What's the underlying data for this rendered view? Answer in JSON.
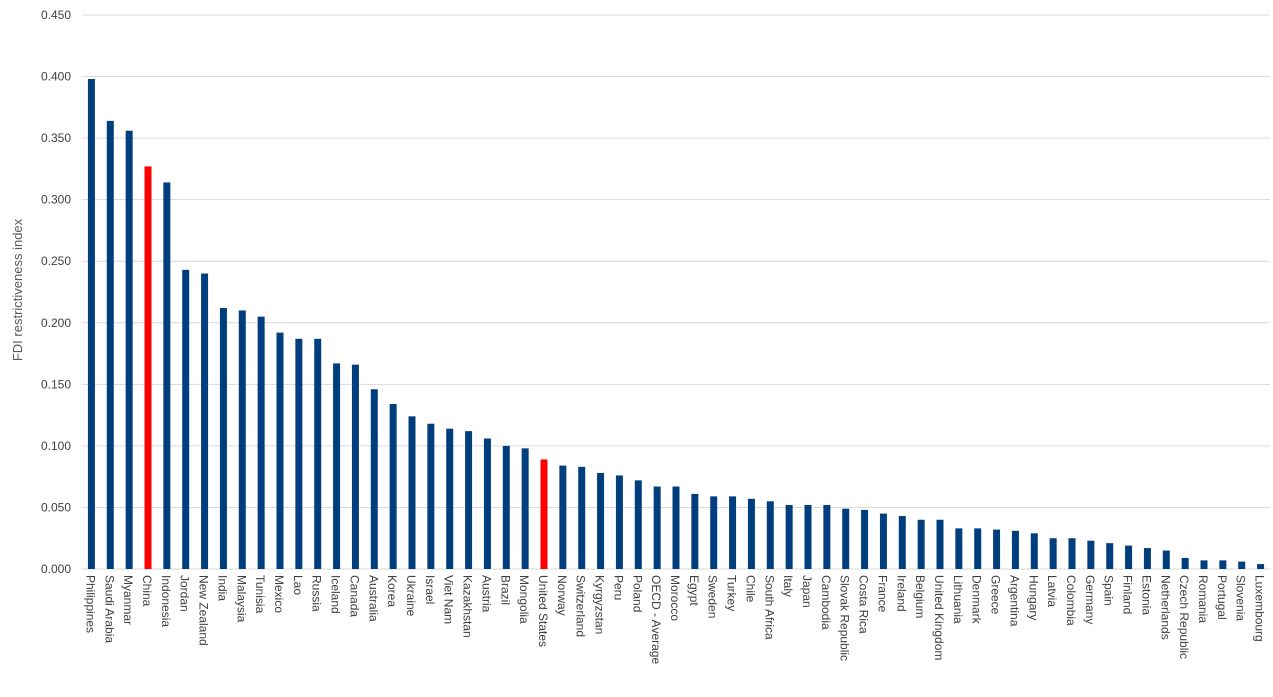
{
  "chart_data": {
    "type": "bar",
    "ylabel": "FDI restrictiveness index",
    "ylim": [
      0,
      0.45
    ],
    "yticks": [
      "0.000",
      "0.050",
      "0.100",
      "0.150",
      "0.200",
      "0.250",
      "0.300",
      "0.350",
      "0.400",
      "0.450"
    ],
    "grid": true,
    "categories": [
      "Philippines",
      "Saudi Arabia",
      "Myanmar",
      "China",
      "Indonesia",
      "Jordan",
      "New Zealand",
      "India",
      "Malaysia",
      "Tunisia",
      "Mexico",
      "Lao",
      "Russia",
      "Iceland",
      "Canada",
      "Australia",
      "Korea",
      "Ukraine",
      "Israel",
      "Viet Nam",
      "Kazakhstan",
      "Austria",
      "Brazil",
      "Mongolia",
      "United States",
      "Norway",
      "Switzerland",
      "Kyrgyzstan",
      "Peru",
      "Poland",
      "OECD - Average",
      "Morocco",
      "Egypt",
      "Sweden",
      "Turkey",
      "Chile",
      "South Africa",
      "Italy",
      "Japan",
      "Cambodia",
      "Slovak Republic",
      "Costa Rica",
      "France",
      "Ireland",
      "Belgium",
      "United Kingdom",
      "Lithuania",
      "Denmark",
      "Greece",
      "Argentina",
      "Hungary",
      "Latvia",
      "Colombia",
      "Germany",
      "Spain",
      "Finland",
      "Estonia",
      "Netherlands",
      "Czech Republic",
      "Romania",
      "Portugal",
      "Slovenia",
      "Luxembourg"
    ],
    "values": [
      0.398,
      0.364,
      0.356,
      0.327,
      0.314,
      0.243,
      0.24,
      0.212,
      0.21,
      0.205,
      0.192,
      0.187,
      0.187,
      0.167,
      0.166,
      0.146,
      0.134,
      0.124,
      0.118,
      0.114,
      0.112,
      0.106,
      0.1,
      0.098,
      0.089,
      0.084,
      0.083,
      0.078,
      0.076,
      0.072,
      0.067,
      0.067,
      0.061,
      0.059,
      0.059,
      0.057,
      0.055,
      0.052,
      0.052,
      0.052,
      0.049,
      0.048,
      0.045,
      0.043,
      0.04,
      0.04,
      0.033,
      0.033,
      0.032,
      0.031,
      0.029,
      0.025,
      0.025,
      0.023,
      0.021,
      0.019,
      0.017,
      0.015,
      0.009,
      0.007,
      0.007,
      0.006,
      0.004
    ],
    "highlight": [
      "China",
      "United States"
    ],
    "colors": {
      "bar": "#003e7e",
      "highlight": "#ff0000",
      "grid": "#d9d9d9"
    }
  }
}
